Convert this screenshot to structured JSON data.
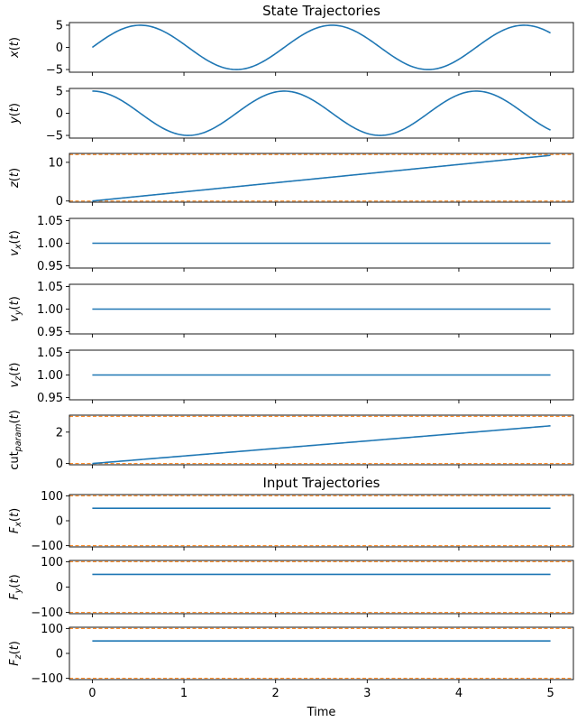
{
  "chart_data": [
    {
      "type": "line",
      "title": "State Trajectories",
      "ylabel_base": "x",
      "ylabel_sub": "",
      "ylabel_arg": "(t)",
      "x": [
        0,
        5
      ],
      "ylim": [
        -5.6,
        5.6
      ],
      "yticks": [
        5,
        0,
        -5
      ],
      "ytick_labels": [
        "5",
        "0",
        "−5"
      ],
      "series": [
        {
          "kind": "sin",
          "amplitude": 5,
          "omega": 3,
          "values_desc": "x(t) = 5 sin(3t)"
        }
      ],
      "bounds": []
    },
    {
      "type": "line",
      "title": "",
      "ylabel_base": "y",
      "ylabel_sub": "",
      "ylabel_arg": "(t)",
      "x": [
        0,
        5
      ],
      "ylim": [
        -5.6,
        5.6
      ],
      "yticks": [
        5,
        0,
        -5
      ],
      "ytick_labels": [
        "5",
        "0",
        "−5"
      ],
      "series": [
        {
          "kind": "cos",
          "amplitude": 5,
          "omega": 3
        }
      ],
      "bounds": []
    },
    {
      "type": "line",
      "title": "",
      "ylabel_base": "z",
      "ylabel_sub": "",
      "ylabel_arg": "(t)",
      "x": [
        0,
        5
      ],
      "ylim": [
        -0.3,
        12.3
      ],
      "yticks": [
        10,
        0
      ],
      "ytick_labels": [
        "10",
        "0"
      ],
      "series": [
        {
          "kind": "linear",
          "start": 0,
          "end": 11.8
        }
      ],
      "bounds": [
        0,
        12
      ]
    },
    {
      "type": "line",
      "title": "",
      "ylabel_base": "v",
      "ylabel_sub": "x",
      "ylabel_arg": "(t)",
      "x": [
        0,
        5
      ],
      "ylim": [
        0.945,
        1.055
      ],
      "yticks": [
        1.05,
        1.0,
        0.95
      ],
      "ytick_labels": [
        "1.05",
        "1.00",
        "0.95"
      ],
      "series": [
        {
          "kind": "const",
          "value": 1.0
        }
      ],
      "bounds": []
    },
    {
      "type": "line",
      "title": "",
      "ylabel_base": "v",
      "ylabel_sub": "y",
      "ylabel_arg": "(t)",
      "x": [
        0,
        5
      ],
      "ylim": [
        0.945,
        1.055
      ],
      "yticks": [
        1.05,
        1.0,
        0.95
      ],
      "ytick_labels": [
        "1.05",
        "1.00",
        "0.95"
      ],
      "series": [
        {
          "kind": "const",
          "value": 1.0
        }
      ],
      "bounds": []
    },
    {
      "type": "line",
      "title": "",
      "ylabel_base": "v",
      "ylabel_sub": "z",
      "ylabel_arg": "(t)",
      "x": [
        0,
        5
      ],
      "ylim": [
        0.945,
        1.055
      ],
      "yticks": [
        1.05,
        1.0,
        0.95
      ],
      "ytick_labels": [
        "1.05",
        "1.00",
        "0.95"
      ],
      "series": [
        {
          "kind": "const",
          "value": 1.0
        }
      ],
      "bounds": []
    },
    {
      "type": "line",
      "title": "",
      "ylabel_base": "cut",
      "ylabel_sub": "param",
      "ylabel_arg": "(t)",
      "x": [
        0,
        5
      ],
      "ylim": [
        -0.08,
        3.08
      ],
      "yticks": [
        2,
        0
      ],
      "ytick_labels": [
        "2",
        "0"
      ],
      "series": [
        {
          "kind": "linear",
          "start": 0,
          "end": 2.4
        }
      ],
      "bounds": [
        0,
        3
      ]
    },
    {
      "type": "line",
      "title": "Input Trajectories",
      "ylabel_base": "F",
      "ylabel_sub": "x",
      "ylabel_arg": "(t)",
      "x": [
        0,
        5
      ],
      "ylim": [
        -105,
        105
      ],
      "yticks": [
        100,
        0,
        -100
      ],
      "ytick_labels": [
        "100",
        "0",
        "−100"
      ],
      "series": [
        {
          "kind": "const",
          "value": 50
        }
      ],
      "bounds": [
        -100,
        100
      ]
    },
    {
      "type": "line",
      "title": "",
      "ylabel_base": "F",
      "ylabel_sub": "y",
      "ylabel_arg": "(t)",
      "x": [
        0,
        5
      ],
      "ylim": [
        -105,
        105
      ],
      "yticks": [
        100,
        0,
        -100
      ],
      "ytick_labels": [
        "100",
        "0",
        "−100"
      ],
      "series": [
        {
          "kind": "const",
          "value": 50
        }
      ],
      "bounds": [
        -100,
        100
      ]
    },
    {
      "type": "line",
      "title": "",
      "ylabel_base": "F",
      "ylabel_sub": "z",
      "ylabel_arg": "(t)",
      "x": [
        0,
        5
      ],
      "ylim": [
        -105,
        105
      ],
      "yticks": [
        100,
        0,
        -100
      ],
      "ytick_labels": [
        "100",
        "0",
        "−100"
      ],
      "series": [
        {
          "kind": "const",
          "value": 50
        }
      ],
      "bounds": [
        -100,
        100
      ]
    }
  ],
  "shared_x": {
    "xlabel": "Time",
    "xlim": [
      -0.25,
      5.25
    ],
    "xticks": [
      0,
      1,
      2,
      3,
      4,
      5
    ],
    "xtick_labels": [
      "0",
      "1",
      "2",
      "3",
      "4",
      "5"
    ]
  },
  "colors": {
    "line": "#1f77b4",
    "bound": "#ff7f0e",
    "axes": "#000000",
    "background": "#ffffff"
  }
}
